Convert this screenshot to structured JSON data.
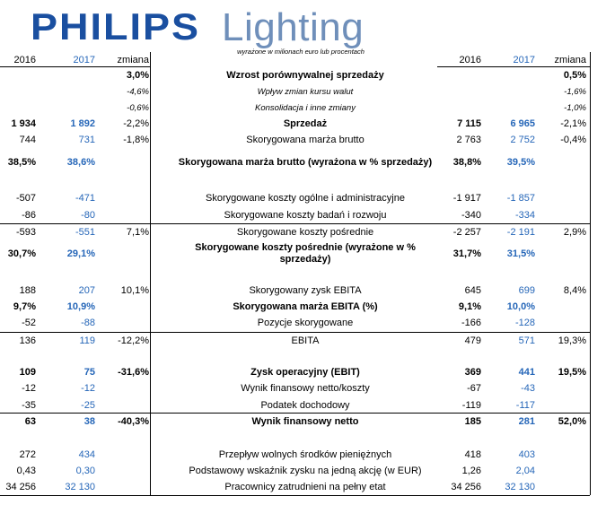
{
  "logo": {
    "brand": "PHILIPS",
    "product": "Lighting"
  },
  "header": {
    "note": "wyrażone w milionach euro lub procentach",
    "y2016": "2016",
    "y2017": "2017",
    "change": "zmiana",
    "y2016b": "2016",
    "y2017b": "2017",
    "changeb": "zmiana"
  },
  "rows": [
    {
      "label": "Wzrost porównywalnej sprzedaży",
      "q16": "",
      "q17": "",
      "qch": "3,0%",
      "f16": "",
      "f17": "",
      "fch": "0,5%"
    },
    {
      "label": "Wpływ zmian kursu walut",
      "q16": "",
      "q17": "",
      "qch": "-4,6%",
      "f16": "",
      "f17": "",
      "fch": "-1,6%"
    },
    {
      "label": "Konsolidacja i inne zmiany",
      "q16": "",
      "q17": "",
      "qch": "-0,6%",
      "f16": "",
      "f17": "",
      "fch": "-1,0%"
    },
    {
      "label": "Sprzedaż",
      "q16": "1 934",
      "q17": "1 892",
      "qch": "-2,2%",
      "f16": "7 115",
      "f17": "6 965",
      "fch": "-2,1%"
    },
    {
      "label": "Skorygowana marża brutto",
      "q16": "744",
      "q17": "731",
      "qch": "-1,8%",
      "f16": "2 763",
      "f17": "2 752",
      "fch": "-0,4%"
    },
    {
      "label": "Skorygowana marża brutto (wyrażona w % sprzedaży)",
      "q16": "38,5%",
      "q17": "38,6%",
      "qch": "",
      "f16": "38,8%",
      "f17": "39,5%",
      "fch": ""
    },
    {
      "label": "Skorygowane koszty ogólne i administracyjne",
      "q16": "-507",
      "q17": "-471",
      "qch": "",
      "f16": "-1 917",
      "f17": "-1 857",
      "fch": ""
    },
    {
      "label": "Skorygowane koszty badań i rozwoju",
      "q16": "-86",
      "q17": "-80",
      "qch": "",
      "f16": "-340",
      "f17": "-334",
      "fch": ""
    },
    {
      "label": "Skorygowane koszty pośrednie",
      "q16": "-593",
      "q17": "-551",
      "qch": "7,1%",
      "f16": "-2 257",
      "f17": "-2 191",
      "fch": "2,9%"
    },
    {
      "label": "Skorygowane koszty pośrednie (wyrażone w % sprzedaży)",
      "q16": "30,7%",
      "q17": "29,1%",
      "qch": "",
      "f16": "31,7%",
      "f17": "31,5%",
      "fch": ""
    },
    {
      "label": "Skorygowany zysk EBITA",
      "q16": "188",
      "q17": "207",
      "qch": "10,1%",
      "f16": "645",
      "f17": "699",
      "fch": "8,4%"
    },
    {
      "label": "Skorygowana marża EBITA (%)",
      "q16": "9,7%",
      "q17": "10,9%",
      "qch": "",
      "f16": "9,1%",
      "f17": "10,0%",
      "fch": ""
    },
    {
      "label": "Pozycje skorygowane",
      "q16": "-52",
      "q17": "-88",
      "qch": "",
      "f16": "-166",
      "f17": "-128",
      "fch": ""
    },
    {
      "label": "EBITA",
      "q16": "136",
      "q17": "119",
      "qch": "-12,2%",
      "f16": "479",
      "f17": "571",
      "fch": "19,3%"
    },
    {
      "label": "Zysk operacyjny (EBIT)",
      "q16": "109",
      "q17": "75",
      "qch": "-31,6%",
      "f16": "369",
      "f17": "441",
      "fch": "19,5%"
    },
    {
      "label": "Wynik finansowy netto/koszty",
      "q16": "-12",
      "q17": "-12",
      "qch": "",
      "f16": "-67",
      "f17": "-43",
      "fch": ""
    },
    {
      "label": "Podatek dochodowy",
      "q16": "-35",
      "q17": "-25",
      "qch": "",
      "f16": "-119",
      "f17": "-117",
      "fch": ""
    },
    {
      "label": "Wynik finansowy netto",
      "q16": "63",
      "q17": "38",
      "qch": "-40,3%",
      "f16": "185",
      "f17": "281",
      "fch": "52,0%"
    },
    {
      "label": "Przepływ wolnych środków pieniężnych",
      "q16": "272",
      "q17": "434",
      "qch": "",
      "f16": "418",
      "f17": "403",
      "fch": ""
    },
    {
      "label": "Podstawowy wskaźnik zysku na jedną akcję (w EUR)",
      "q16": "0,43",
      "q17": "0,30",
      "qch": "",
      "f16": "1,26",
      "f17": "2,04",
      "fch": ""
    },
    {
      "label": "Pracownicy zatrudnieni na pełny etat",
      "q16": "34 256",
      "q17": "32 130",
      "qch": "",
      "f16": "34 256",
      "f17": "32 130",
      "fch": ""
    }
  ]
}
